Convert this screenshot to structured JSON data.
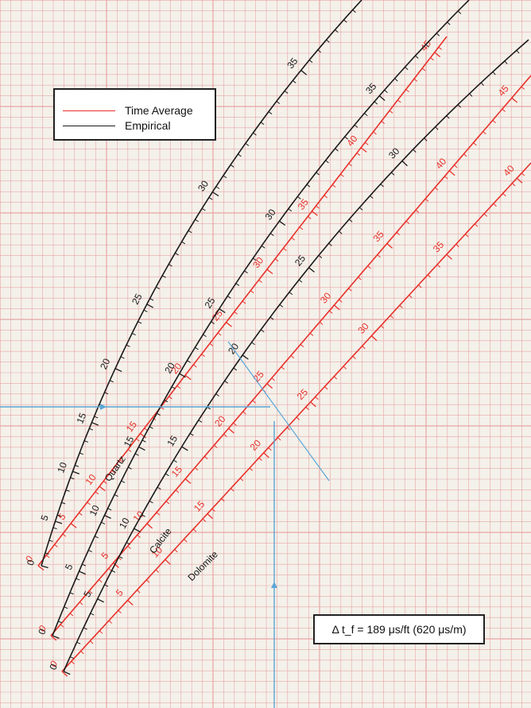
{
  "legend": {
    "time_average_label": "Time Average",
    "empirical_label": "Empirical",
    "time_average_color": "#e8312b",
    "empirical_color": "#1a1a1a"
  },
  "fluid_note": "Δ t_f = 189 μs/ft (620 μs/m)",
  "guide_color": "#5aa6d8",
  "grid_color": "#e6a5a5",
  "chart_data": {
    "type": "line",
    "title": "",
    "xlabel": "",
    "ylabel": "",
    "grid": true,
    "legend_position": "top-left",
    "series": [
      {
        "name": "Time Average",
        "mineral": "Quartz",
        "tick_labels": [
          "0",
          "5",
          "10",
          "15",
          "20",
          "25",
          "30",
          "35",
          "40",
          "45"
        ]
      },
      {
        "name": "Empirical",
        "mineral": "Quartz",
        "tick_labels": [
          "0",
          "5",
          "10",
          "15",
          "20",
          "25",
          "30",
          "35"
        ]
      },
      {
        "name": "Time Average",
        "mineral": "Calcite",
        "tick_labels": [
          "0",
          "5",
          "10",
          "15",
          "20",
          "25",
          "30",
          "35",
          "40",
          "45"
        ]
      },
      {
        "name": "Empirical",
        "mineral": "Calcite",
        "tick_labels": [
          "0",
          "5",
          "10",
          "15",
          "20",
          "25",
          "30",
          "35"
        ]
      },
      {
        "name": "Time Average",
        "mineral": "Dolomite",
        "tick_labels": [
          "0",
          "5",
          "10",
          "15",
          "20",
          "25",
          "30",
          "35",
          "40"
        ]
      },
      {
        "name": "Empirical",
        "mineral": "Dolomite",
        "tick_labels": [
          "0",
          "5",
          "10",
          "15",
          "20",
          "25",
          "30"
        ]
      }
    ],
    "mineral_labels": [
      "Quartz",
      "Calcite",
      "Dolomite"
    ]
  }
}
